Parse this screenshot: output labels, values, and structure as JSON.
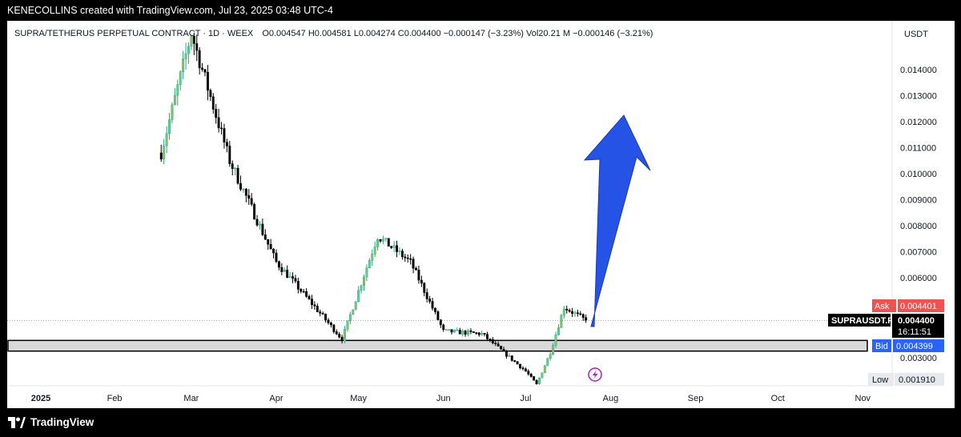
{
  "header": {
    "attribution": "KENECOLLINS created with TradingView.com, Jul 23, 2025 03:48 UTC-4"
  },
  "legend": {
    "symbol": "SUPRA/TETHERUS PERPETUAL CONTRACT · 1D · WEEX",
    "ohlc": "O0.004547  H0.004581  L0.004274  C0.004400  −0.000147 (−3.23%)  Vol20.21 M  −0.000146 (−3.21%)"
  },
  "price_axis": {
    "currency": "USDT",
    "ask_label": "Ask",
    "ask_value": "0.004401",
    "symbol_tag": "SUPRAUSDT.P",
    "last_value": "0.004400",
    "countdown": "16:11:51",
    "bid_label": "Bid",
    "bid_value": "0.004399",
    "low_label": "Low",
    "low_value": "0.001910"
  },
  "footer": {
    "brand": "TradingView"
  },
  "colors": {
    "up": "#26a69a",
    "down": "#000000",
    "up_fill": "#7cc96a",
    "arrow": "#2453e6",
    "ask": "#ef5350",
    "bid": "#2962ff",
    "zone": "#d9d9d9"
  },
  "chart_data": {
    "type": "candlestick",
    "symbol": "SUPRAUSDT.P",
    "timeframe": "1D",
    "x_ticks": [
      "2025",
      "Feb",
      "Mar",
      "Apr",
      "May",
      "Jun",
      "Jul",
      "Aug",
      "Sep",
      "Oct",
      "Nov"
    ],
    "y_ticks": [
      "0.014000",
      "0.013000",
      "0.012000",
      "0.011000",
      "0.010000",
      "0.009000",
      "0.008000",
      "0.007000",
      "0.006000",
      "0.003000"
    ],
    "ylim": [
      0.0019,
      0.0154
    ],
    "last_price": 0.0044,
    "support_zone": [
      0.00325,
      0.00365
    ],
    "key_points": [
      {
        "date": "2025-02-18",
        "price": 0.0108
      },
      {
        "date": "2025-03-01",
        "price": 0.0154
      },
      {
        "date": "2025-03-15",
        "price": 0.0105
      },
      {
        "date": "2025-04-01",
        "price": 0.0066
      },
      {
        "date": "2025-04-25",
        "price": 0.0037
      },
      {
        "date": "2025-05-08",
        "price": 0.0076
      },
      {
        "date": "2025-05-20",
        "price": 0.0066
      },
      {
        "date": "2025-06-01",
        "price": 0.004
      },
      {
        "date": "2025-06-15",
        "price": 0.0039
      },
      {
        "date": "2025-07-01",
        "price": 0.0025
      },
      {
        "date": "2025-07-05",
        "price": 0.002
      },
      {
        "date": "2025-07-10",
        "price": 0.0032
      },
      {
        "date": "2025-07-15",
        "price": 0.0049
      },
      {
        "date": "2025-07-23",
        "price": 0.0044
      }
    ],
    "annotation": "upward arrow"
  }
}
